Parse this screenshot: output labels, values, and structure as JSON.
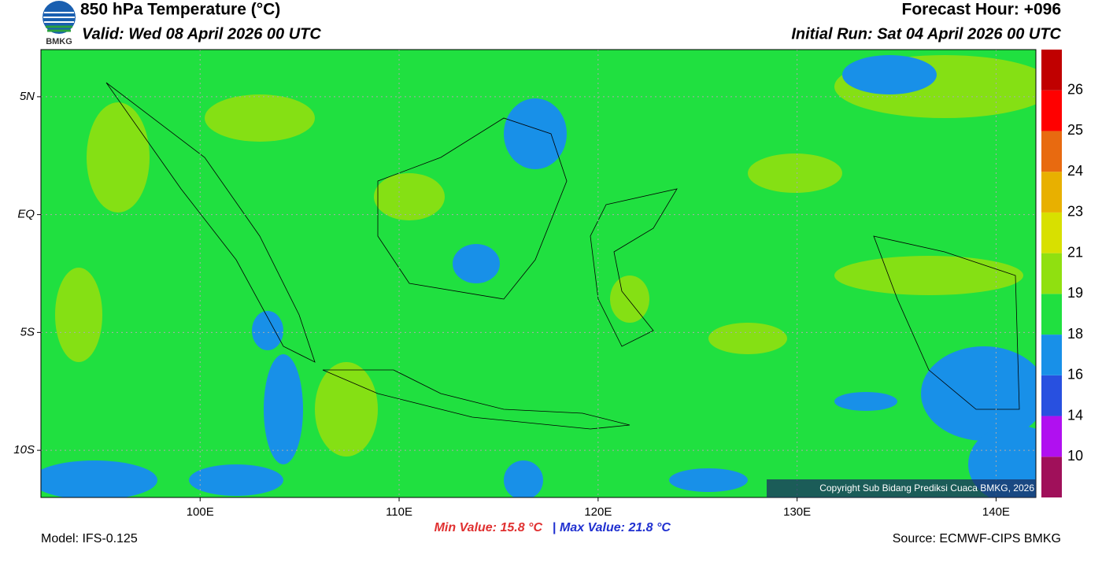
{
  "header": {
    "logo_text": "BMKG",
    "title": "850 hPa Temperature (°C)",
    "valid": "Valid: Wed 08 April 2026 00 UTC",
    "forecast_hour": "Forecast Hour: +096",
    "initial_run": "Initial Run: Sat 04 April 2026 00 UTC"
  },
  "map": {
    "xlim": [
      92,
      142
    ],
    "ylim": [
      -12,
      7
    ],
    "xticks": [
      {
        "value": 100,
        "label": "100E"
      },
      {
        "value": 110,
        "label": "110E"
      },
      {
        "value": 120,
        "label": "120E"
      },
      {
        "value": 130,
        "label": "130E"
      },
      {
        "value": 140,
        "label": "140E"
      }
    ],
    "yticks": [
      {
        "value": 5,
        "label": "5N"
      },
      {
        "value": 0,
        "label": "EQ"
      },
      {
        "value": -5,
        "label": "5S"
      },
      {
        "value": -10,
        "label": "10S"
      }
    ],
    "copyright": "Copyright Sub Bidang Prediksi Cuaca BMKG, 2026"
  },
  "colorbar": {
    "levels": [
      10,
      14,
      16,
      18,
      19,
      21,
      23,
      24,
      25,
      26
    ],
    "colors": [
      "#a0105a",
      "#b010f0",
      "#2850e0",
      "#1890e8",
      "#20e040",
      "#90e010",
      "#d8e000",
      "#e8b000",
      "#e86a10",
      "#ff0000",
      "#c00000"
    ]
  },
  "footer": {
    "model": "Model: IFS-0.125",
    "min_value": "Min Value: 15.8 °C",
    "max_value": "Max Value: 21.8 °C",
    "source": "Source: ECMWF-CIPS BMKG"
  }
}
